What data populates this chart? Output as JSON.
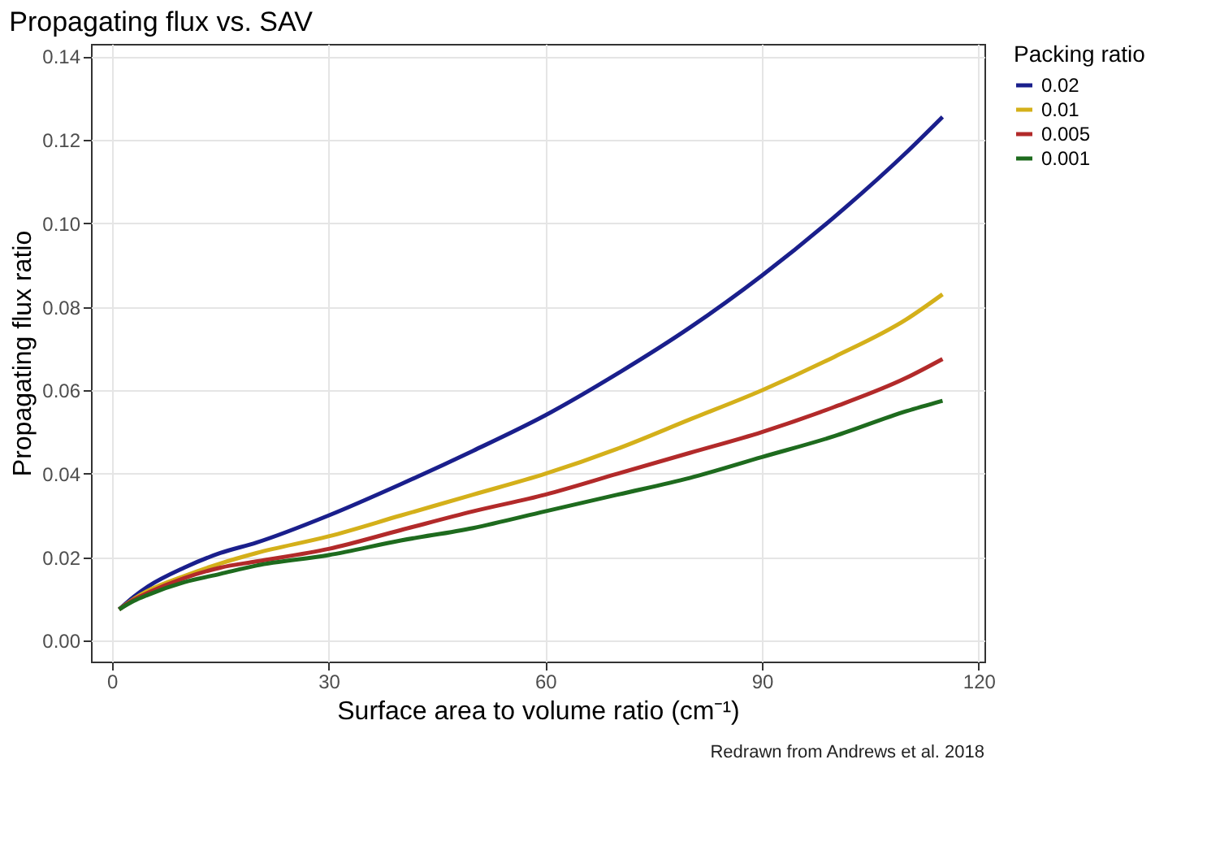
{
  "chart_data": {
    "type": "line",
    "title": "Propagating flux vs. SAV",
    "xlabel": "Surface area to volume ratio (cm⁻¹)",
    "ylabel": "Propagating flux ratio",
    "legend_title": "Packing ratio",
    "x": [
      1,
      3,
      5,
      10,
      15,
      20,
      30,
      40,
      50,
      60,
      70,
      80,
      90,
      100,
      110,
      115
    ],
    "series": [
      {
        "name": "0.02",
        "color": "#1a1f8c",
        "values": [
          0.0075,
          0.0105,
          0.013,
          0.0175,
          0.021,
          0.0235,
          0.03,
          0.0375,
          0.0455,
          0.054,
          0.064,
          0.075,
          0.0875,
          0.1015,
          0.117,
          0.1255
        ]
      },
      {
        "name": "0.01",
        "color": "#d4b01a",
        "values": [
          0.0075,
          0.01,
          0.012,
          0.0155,
          0.0185,
          0.021,
          0.025,
          0.03,
          0.035,
          0.04,
          0.046,
          0.053,
          0.06,
          0.068,
          0.077,
          0.083
        ]
      },
      {
        "name": "0.005",
        "color": "#b22a2a",
        "values": [
          0.0075,
          0.0098,
          0.0115,
          0.015,
          0.0175,
          0.019,
          0.022,
          0.0265,
          0.031,
          0.035,
          0.04,
          0.045,
          0.05,
          0.056,
          0.063,
          0.0675
        ]
      },
      {
        "name": "0.001",
        "color": "#1e6b1e",
        "values": [
          0.0075,
          0.0095,
          0.011,
          0.014,
          0.016,
          0.018,
          0.0205,
          0.024,
          0.027,
          0.031,
          0.035,
          0.039,
          0.044,
          0.049,
          0.055,
          0.0575
        ]
      }
    ],
    "xlim": [
      -2.9,
      120.8
    ],
    "xticks": [
      0,
      30,
      60,
      90,
      120
    ],
    "ylim": [
      -0.005,
      0.143
    ],
    "yticks": [
      {
        "value": 0,
        "label": "0.00"
      },
      0.02,
      0.04,
      0.06,
      0.08,
      {
        "value": 0.1,
        "label": "0.10"
      },
      0.12,
      0.14
    ],
    "grid": true,
    "legend": "right",
    "line_style": "solid",
    "annotations": [
      "Redrawn from Andrews et al. 2018"
    ]
  }
}
